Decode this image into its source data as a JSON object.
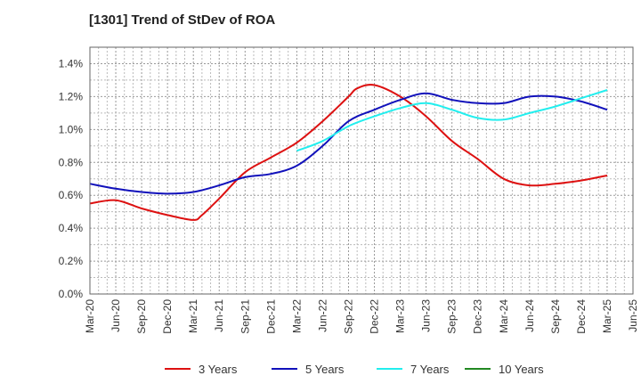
{
  "chart_data": {
    "type": "line",
    "title": "[1301]  Trend of StDev of ROA",
    "xlabel": "",
    "ylabel": "",
    "x_ticks": [
      "Mar-20",
      "Jun-20",
      "Sep-20",
      "Dec-20",
      "Mar-21",
      "Jun-21",
      "Sep-21",
      "Dec-21",
      "Mar-22",
      "Jun-22",
      "Sep-22",
      "Dec-22",
      "Mar-23",
      "Jun-23",
      "Sep-23",
      "Dec-23",
      "Mar-24",
      "Jun-24",
      "Sep-24",
      "Dec-24",
      "Mar-25",
      "Jun-25"
    ],
    "y_ticks": [
      "0.0%",
      "0.2%",
      "0.4%",
      "0.6%",
      "0.8%",
      "1.0%",
      "1.2%",
      "1.4%"
    ],
    "ylim": [
      0,
      1.5
    ],
    "grid": true,
    "legend_position": "bottom",
    "series": [
      {
        "name": "3 Years",
        "color": "#dd1111",
        "x": [
          "Mar-20",
          "Jun-20",
          "Sep-20",
          "Dec-20",
          "Mar-21",
          "Apr-21",
          "Jun-21",
          "Sep-21",
          "Dec-21",
          "Mar-22",
          "Jun-22",
          "Sep-22",
          "Oct-22",
          "Dec-22",
          "Mar-23",
          "Jun-23",
          "Sep-23",
          "Dec-23",
          "Mar-24",
          "Jun-24",
          "Sep-24",
          "Dec-24",
          "Mar-25"
        ],
        "values": [
          0.55,
          0.57,
          0.52,
          0.48,
          0.45,
          0.48,
          0.58,
          0.74,
          0.83,
          0.92,
          1.05,
          1.2,
          1.25,
          1.27,
          1.2,
          1.08,
          0.93,
          0.82,
          0.7,
          0.66,
          0.67,
          0.69,
          0.72
        ]
      },
      {
        "name": "5 Years",
        "color": "#1111bb",
        "x": [
          "Mar-20",
          "Jun-20",
          "Sep-20",
          "Dec-20",
          "Mar-21",
          "Jun-21",
          "Sep-21",
          "Dec-21",
          "Mar-22",
          "Jun-22",
          "Sep-22",
          "Dec-22",
          "Mar-23",
          "Jun-23",
          "Sep-23",
          "Dec-23",
          "Mar-24",
          "Jun-24",
          "Sep-24",
          "Dec-24",
          "Mar-25"
        ],
        "values": [
          0.67,
          0.64,
          0.62,
          0.61,
          0.62,
          0.66,
          0.71,
          0.73,
          0.78,
          0.9,
          1.05,
          1.12,
          1.18,
          1.22,
          1.18,
          1.16,
          1.16,
          1.2,
          1.2,
          1.17,
          1.12
        ]
      },
      {
        "name": "7 Years",
        "color": "#22eeee",
        "x": [
          "Mar-22",
          "Jun-22",
          "Sep-22",
          "Dec-22",
          "Mar-23",
          "Jun-23",
          "Sep-23",
          "Dec-23",
          "Mar-24",
          "Jun-24",
          "Sep-24",
          "Dec-24",
          "Mar-25"
        ],
        "values": [
          0.87,
          0.93,
          1.02,
          1.08,
          1.13,
          1.16,
          1.12,
          1.07,
          1.06,
          1.1,
          1.14,
          1.19,
          1.24
        ]
      },
      {
        "name": "10 Years",
        "color": "#228822",
        "x": [],
        "values": []
      }
    ]
  }
}
